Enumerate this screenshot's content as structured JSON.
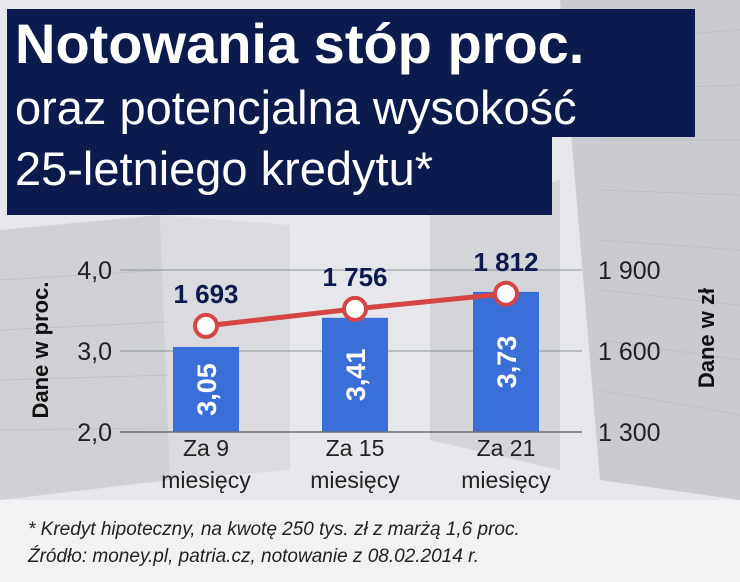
{
  "title": {
    "line1": "Notowania stóp proc.",
    "line2": "oraz potencjalna wysokość",
    "line3": "25-letniego kredytu*"
  },
  "footnote": {
    "line1": "* Kredyt hipoteczny, na kwotę 250 tys. zł z marżą 1,6 proc.",
    "line2": "Źródło: money.pl, patria.cz, notowanie z 08.02.2014 r."
  },
  "colors": {
    "title_bg": "#0c1a4e",
    "bar": "#3b6fd8",
    "line": "#d64545",
    "text_dark": "#0c1a4e"
  },
  "chart_data": {
    "type": "bar",
    "categories": [
      [
        "Za 9",
        "miesięcy"
      ],
      [
        "Za 15",
        "miesięcy"
      ],
      [
        "Za 21",
        "miesięcy"
      ]
    ],
    "series": [
      {
        "axis": "left",
        "type": "bar",
        "values": [
          3.05,
          3.41,
          3.73
        ],
        "labels": [
          "3,05",
          "3,41",
          "3,73"
        ]
      },
      {
        "axis": "right",
        "type": "line",
        "values": [
          1693,
          1756,
          1812
        ],
        "labels": [
          "1 693",
          "1 756",
          "1 812"
        ]
      }
    ],
    "ylabel": "Dane w proc.",
    "y2label": "Dane w zł",
    "ylim": [
      2.0,
      4.0
    ],
    "y2lim": [
      1300,
      1900
    ],
    "yticks": [
      2.0,
      3.0,
      4.0
    ],
    "yticklabels": [
      "2,0",
      "3,0",
      "4,0"
    ],
    "y2ticks": [
      1300,
      1600,
      1900
    ],
    "y2ticklabels": [
      "1 300",
      "1 600",
      "1 900"
    ],
    "grid": true
  }
}
